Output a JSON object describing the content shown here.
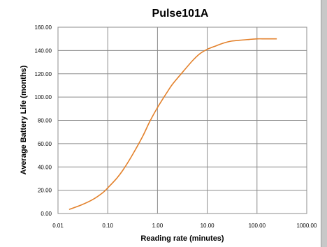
{
  "chart_data": {
    "type": "line",
    "title": "Pulse101A",
    "xlabel": "Reading rate (minutes)",
    "ylabel": "Average Battery Life (months)",
    "x_scale": "log",
    "xlim": [
      0.01,
      1000
    ],
    "ylim": [
      0,
      160
    ],
    "x_ticks": [
      "0.01",
      "0.10",
      "1.00",
      "10.00",
      "100.00",
      "1000.00"
    ],
    "y_ticks": [
      "0.00",
      "20.00",
      "40.00",
      "60.00",
      "80.00",
      "100.00",
      "120.00",
      "140.00",
      "160.00"
    ],
    "grid": true,
    "legend": "none",
    "series": [
      {
        "color": "#E3812B",
        "x": [
          0.0167,
          0.03,
          0.05,
          0.08,
          0.1,
          0.15,
          0.2,
          0.3,
          0.5,
          0.7,
          1.0,
          1.5,
          2,
          3,
          5,
          7,
          10,
          15,
          20,
          30,
          50,
          70,
          100,
          150,
          250
        ],
        "y": [
          3.5,
          7.5,
          12,
          18,
          22,
          30,
          37,
          49,
          66,
          79,
          91,
          103,
          111,
          120,
          131,
          137,
          141,
          144,
          146,
          148,
          149,
          149.5,
          150,
          150,
          150
        ]
      }
    ]
  }
}
